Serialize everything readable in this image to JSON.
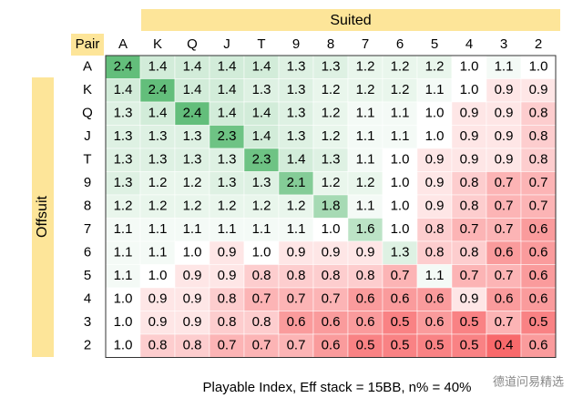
{
  "chart_data": {
    "type": "heatmap",
    "column_group": "Suited",
    "row_group": "Offsuit",
    "corner_label": "Pair",
    "caption": "Playable Index, Eff stack = 15BB, n% = 40%",
    "watermark": "德道问易精选",
    "columns": [
      "A",
      "K",
      "Q",
      "J",
      "T",
      "9",
      "8",
      "7",
      "6",
      "5",
      "4",
      "3",
      "2"
    ],
    "rows": [
      "A",
      "K",
      "Q",
      "J",
      "T",
      "9",
      "8",
      "7",
      "6",
      "5",
      "4",
      "3",
      "2"
    ],
    "color_low": "#f8696b",
    "color_mid": "#ffffff",
    "color_high": "#63be7b",
    "values": [
      [
        2.4,
        1.4,
        1.4,
        1.4,
        1.4,
        1.3,
        1.3,
        1.2,
        1.2,
        1.2,
        1.0,
        1.1,
        1.0
      ],
      [
        1.4,
        2.4,
        1.4,
        1.4,
        1.3,
        1.3,
        1.2,
        1.2,
        1.2,
        1.1,
        1.0,
        0.9,
        0.9
      ],
      [
        1.3,
        1.4,
        2.4,
        1.4,
        1.4,
        1.3,
        1.2,
        1.1,
        1.1,
        1.0,
        0.9,
        0.9,
        0.8
      ],
      [
        1.3,
        1.3,
        1.3,
        2.3,
        1.4,
        1.3,
        1.2,
        1.1,
        1.1,
        1.0,
        0.9,
        0.9,
        0.8
      ],
      [
        1.3,
        1.3,
        1.3,
        1.3,
        2.3,
        1.4,
        1.3,
        1.1,
        1.0,
        0.9,
        0.9,
        0.9,
        0.8
      ],
      [
        1.3,
        1.2,
        1.2,
        1.3,
        1.3,
        2.1,
        1.2,
        1.2,
        1.0,
        0.9,
        0.8,
        0.7,
        0.7
      ],
      [
        1.2,
        1.2,
        1.2,
        1.2,
        1.2,
        1.2,
        1.8,
        1.1,
        1.0,
        0.9,
        0.8,
        0.7,
        0.7
      ],
      [
        1.1,
        1.1,
        1.1,
        1.1,
        1.1,
        1.1,
        1.0,
        1.6,
        1.0,
        0.8,
        0.7,
        0.7,
        0.6
      ],
      [
        1.1,
        1.1,
        1.0,
        0.9,
        1.0,
        0.9,
        0.9,
        0.9,
        1.3,
        0.8,
        0.8,
        0.6,
        0.6
      ],
      [
        1.1,
        1.0,
        0.9,
        0.9,
        0.8,
        0.8,
        0.8,
        0.8,
        0.7,
        1.1,
        0.7,
        0.7,
        0.6
      ],
      [
        1.0,
        0.9,
        0.9,
        0.8,
        0.7,
        0.7,
        0.7,
        0.6,
        0.6,
        0.6,
        0.9,
        0.6,
        0.6
      ],
      [
        1.0,
        0.9,
        0.9,
        0.8,
        0.8,
        0.6,
        0.6,
        0.6,
        0.5,
        0.6,
        0.5,
        0.7,
        0.5
      ],
      [
        1.0,
        0.8,
        0.8,
        0.7,
        0.7,
        0.7,
        0.6,
        0.5,
        0.5,
        0.5,
        0.5,
        0.4,
        0.6
      ]
    ],
    "value_labels": [
      [
        "2.4",
        "1.4",
        "1.4",
        "1.4",
        "1.4",
        "1.3",
        "1.3",
        "1.2",
        "1.2",
        "1.2",
        "1.0",
        "1.1",
        "1.0"
      ],
      [
        "1.4",
        "2.4",
        "1.4",
        "1.4",
        "1.3",
        "1.3",
        "1.2",
        "1.2",
        "1.2",
        "1.1",
        "1.0",
        "0.9",
        "0.9"
      ],
      [
        "1.3",
        "1.4",
        "2.4",
        "1.4",
        "1.4",
        "1.3",
        "1.2",
        "1.1",
        "1.1",
        "1.0",
        "0.9",
        "0.9",
        "0.8"
      ],
      [
        "1.3",
        "1.3",
        "1.3",
        "2.3",
        "1.4",
        "1.3",
        "1.2",
        "1.1",
        "1.1",
        "1.0",
        "0.9",
        "0.9",
        "0.8"
      ],
      [
        "1.3",
        "1.3",
        "1.3",
        "1.3",
        "2.3",
        "1.4",
        "1.3",
        "1.1",
        "1.0",
        "0.9",
        "0.9",
        "0.9",
        "0.8"
      ],
      [
        "1.3",
        "1.2",
        "1.2",
        "1.3",
        "1.3",
        "2.1",
        "1.2",
        "1.2",
        "1.0",
        "0.9",
        "0.8",
        "0.7",
        "0.7"
      ],
      [
        "1.2",
        "1.2",
        "1.2",
        "1.2",
        "1.2",
        "1.2",
        "1.8",
        "1.1",
        "1.0",
        "0.9",
        "0.8",
        "0.7",
        "0.7"
      ],
      [
        "1.1",
        "1.1",
        "1.1",
        "1.1",
        "1.1",
        "1.1",
        "1.0",
        "1.6",
        "1.0",
        "0.8",
        "0.7",
        "0.7",
        "0.6"
      ],
      [
        "1.1",
        "1.1",
        "1.0",
        "0.9",
        "1.0",
        "0.9",
        "0.9",
        "0.9",
        "1.3",
        "0.8",
        "0.8",
        "0.6",
        "0.6"
      ],
      [
        "1.1",
        "1.0",
        "0.9",
        "0.9",
        "0.8",
        "0.8",
        "0.8",
        "0.8",
        "0.7",
        "1.1",
        "0.7",
        "0.7",
        "0.6"
      ],
      [
        "1.0",
        "0.9",
        "0.9",
        "0.8",
        "0.7",
        "0.7",
        "0.7",
        "0.6",
        "0.6",
        "0.6",
        "0.9",
        "0.6",
        "0.6"
      ],
      [
        "1.0",
        "0.9",
        "0.9",
        "0.8",
        "0.8",
        "0.6",
        "0.6",
        "0.6",
        "0.5",
        "0.6",
        "0.5",
        "0.7",
        "0.5"
      ],
      [
        "1.0",
        "0.8",
        "0.8",
        "0.7",
        "0.7",
        "0.7",
        "0.6",
        "0.5",
        "0.5",
        "0.5",
        "0.5",
        "0.4",
        "0.6"
      ]
    ]
  }
}
